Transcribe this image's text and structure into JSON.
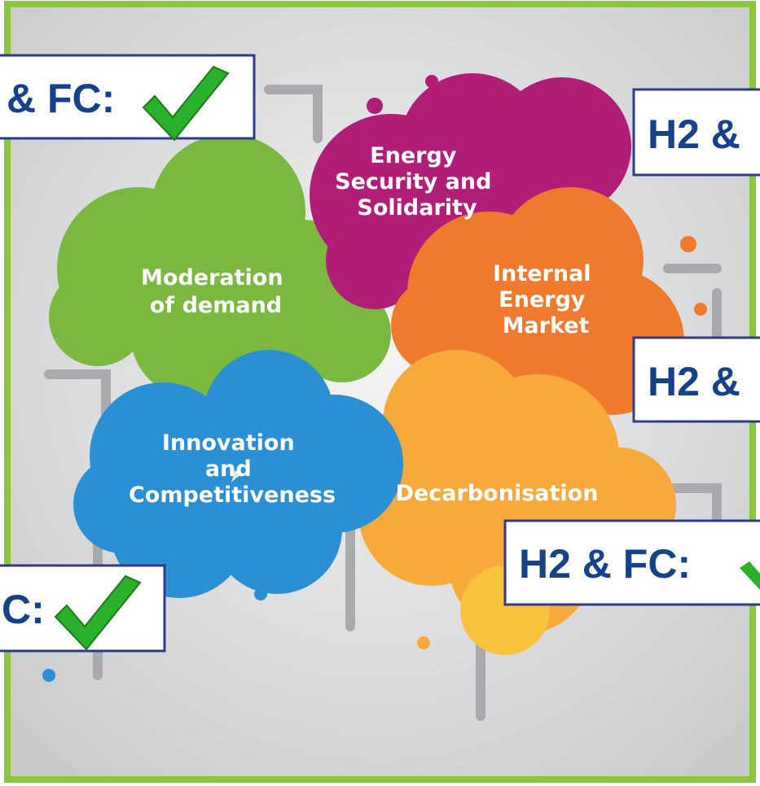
{
  "clouds": [
    {
      "lines": [
        "Energy",
        "Security and",
        "Solidarity"
      ]
    },
    {
      "lines": [
        "Moderation",
        "of demand"
      ]
    },
    {
      "lines": [
        "Internal",
        "Energy",
        "Market"
      ]
    },
    {
      "lines": [
        "Innovation",
        "and",
        "Competitiveness"
      ]
    },
    {
      "lines": [
        "Decarbonisation"
      ]
    }
  ],
  "badges": [
    "& FC:",
    "H2 &",
    "H2 &",
    "H2 & FC:",
    "C:"
  ]
}
